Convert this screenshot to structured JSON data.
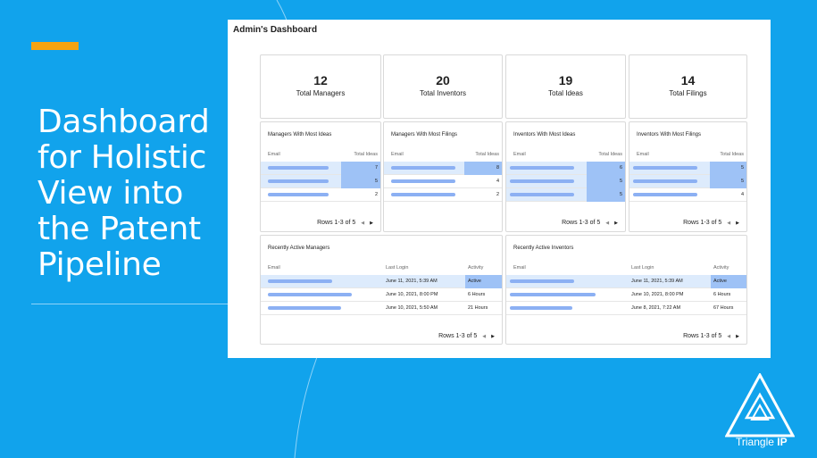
{
  "slide": {
    "headline_lines": [
      "Dashboard",
      "for Holistic",
      "View into",
      "the Patent",
      "Pipeline"
    ],
    "colors": {
      "background": "#11a3ec",
      "accent": "#f5a310",
      "highlight": "#9ec2f6"
    }
  },
  "dashboard": {
    "title": "Admin's Dashboard",
    "stats": [
      {
        "value": "12",
        "label": "Total Managers"
      },
      {
        "value": "20",
        "label": "Total Inventors"
      },
      {
        "value": "19",
        "label": "Total Ideas"
      },
      {
        "value": "14",
        "label": "Total Filings"
      }
    ],
    "small_tables": [
      {
        "title": "Managers With Most Ideas",
        "col_email": "Email",
        "col_value": "Total Ideas",
        "values": [
          "7",
          "5",
          "2"
        ],
        "pager": "Rows 1-3 of 5"
      },
      {
        "title": "Managers With Most Filings",
        "col_email": "Email",
        "col_value": "Total Ideas",
        "values": [
          "8",
          "4",
          "2"
        ],
        "pager": ""
      },
      {
        "title": "Inventors With Most Ideas",
        "col_email": "Email",
        "col_value": "Total Ideas",
        "values": [
          "6",
          "5",
          "5"
        ],
        "pager": "Rows 1-3 of 5"
      },
      {
        "title": "Inventors With Most Filings",
        "col_email": "Email",
        "col_value": "Total Ideas",
        "values": [
          "5",
          "5",
          "4"
        ],
        "pager": "Rows 1-3 of 5"
      }
    ],
    "activity_tables": [
      {
        "title": "Recently Active Managers",
        "col_email": "Email",
        "col_login": "Last Login",
        "col_activity": "Activity",
        "rows": [
          {
            "login": "June 11, 2021, 5:39 AM",
            "activity": "Active"
          },
          {
            "login": "June 10, 2021, 8:00 PM",
            "activity": "6 Hours"
          },
          {
            "login": "June 10, 2021, 5:50 AM",
            "activity": "21 Hours"
          }
        ],
        "pager": "Rows 1-3 of 5"
      },
      {
        "title": "Recently Active Inventors",
        "col_email": "Email",
        "col_login": "Last Login",
        "col_activity": "Activity",
        "rows": [
          {
            "login": "June 11, 2021, 5:39 AM",
            "activity": "Active"
          },
          {
            "login": "June 10, 2021, 8:00 PM",
            "activity": "6 Hours"
          },
          {
            "login": "June 8, 2021, 7:22 AM",
            "activity": "67 Hours"
          }
        ],
        "pager": "Rows 1-3 of 5"
      }
    ]
  },
  "logo": {
    "name_regular": "Triangle ",
    "name_bold": "IP",
    "icon": "triangle-logo-icon"
  }
}
